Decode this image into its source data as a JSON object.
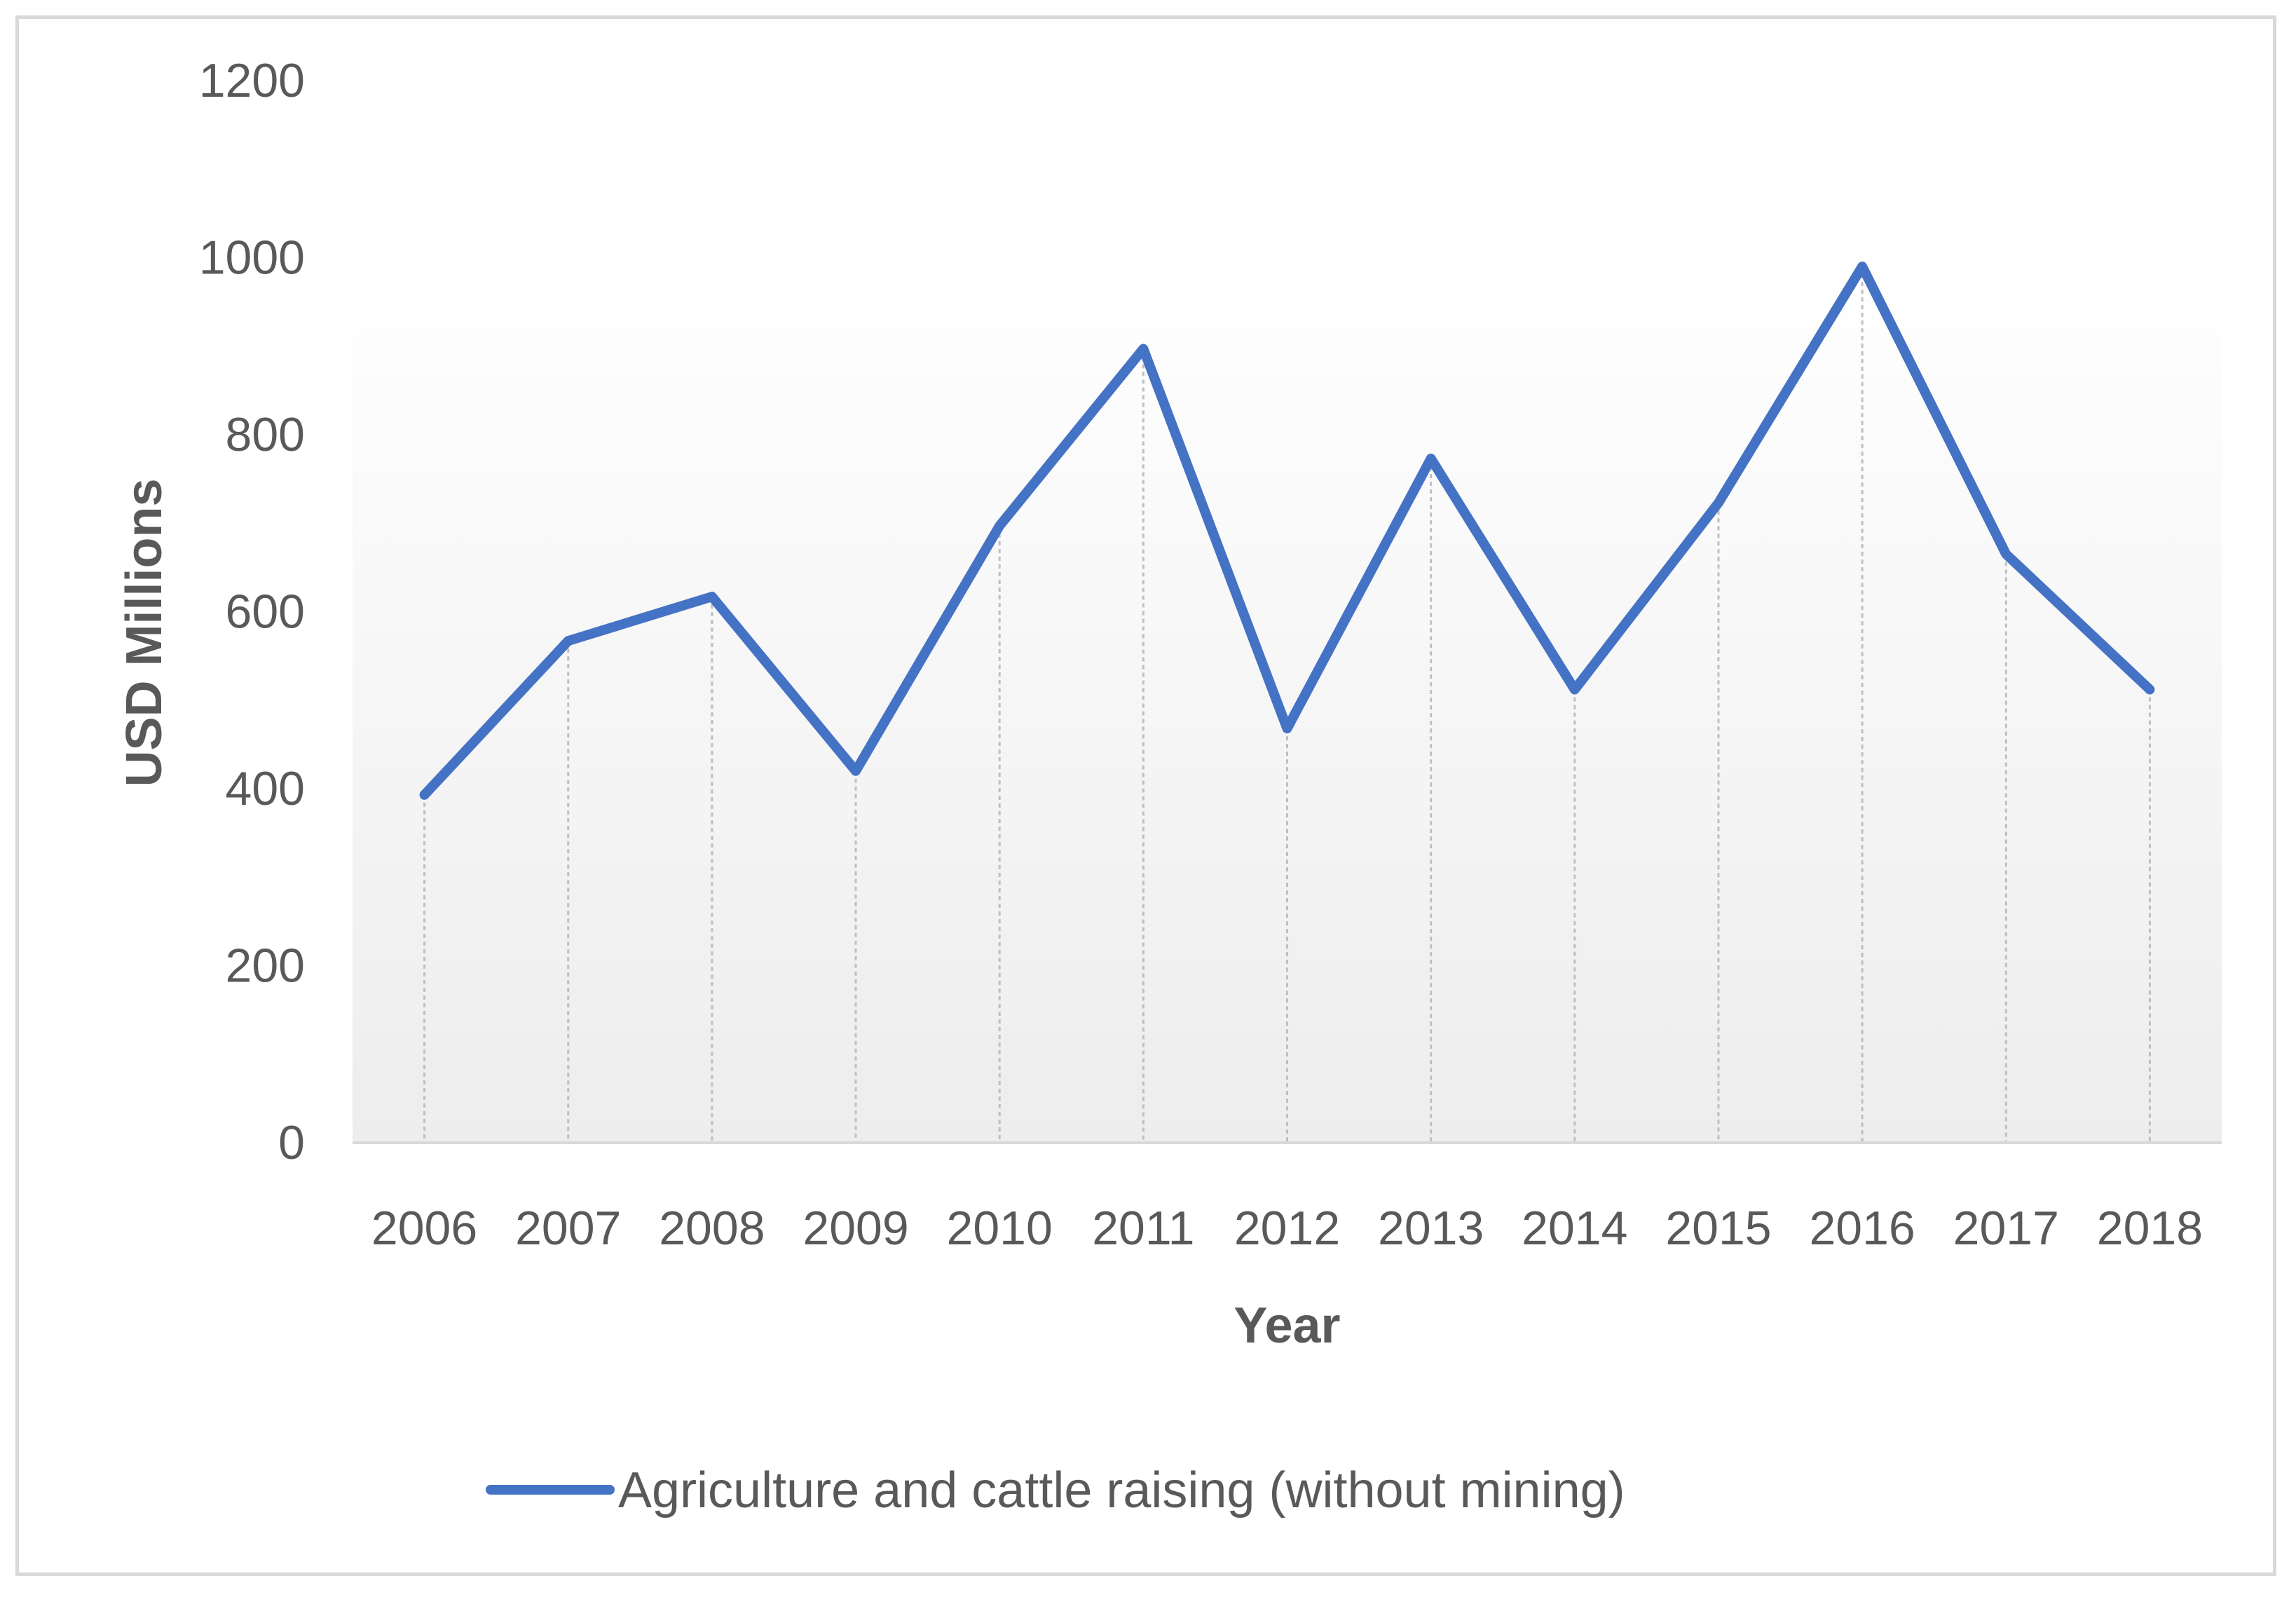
{
  "chart_data": {
    "type": "line",
    "title": "",
    "xlabel": "Year",
    "ylabel": "USD Millions",
    "categories": [
      "2006",
      "2007",
      "2008",
      "2009",
      "2010",
      "2011",
      "2012",
      "2013",
      "2014",
      "2015",
      "2016",
      "2017",
      "2018"
    ],
    "series": [
      {
        "name": "Agriculture and cattle raising (without mining)",
        "color": "#4472c4",
        "values": [
          393,
          567,
          617,
          420,
          697,
          897,
          468,
          773,
          512,
          723,
          990,
          665,
          512
        ]
      }
    ],
    "ylim": [
      0,
      1200
    ],
    "yticks": [
      "0",
      "200",
      "400",
      "600",
      "800",
      "1000",
      "1200"
    ],
    "grid": false,
    "drop_lines": true,
    "legend_position": "bottom"
  }
}
